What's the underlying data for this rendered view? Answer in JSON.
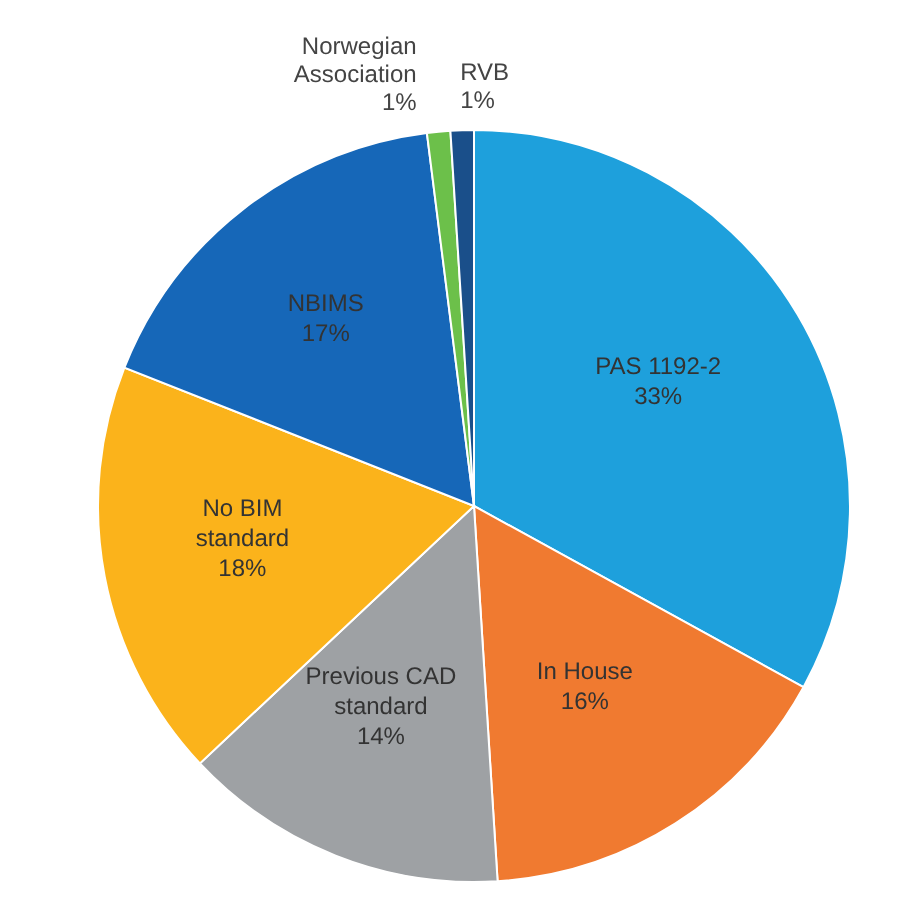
{
  "chart_data": {
    "type": "pie",
    "categories": [
      "PAS 1192-2",
      "In House",
      "Previous CAD standard",
      "No BIM standard",
      "NBIMS",
      "Norwegian Association",
      "RVB"
    ],
    "values": [
      33,
      16,
      14,
      18,
      17,
      1,
      1
    ],
    "colors": [
      "#1ea0dc",
      "#f07a30",
      "#9ea1a4",
      "#fbb31b",
      "#1667b8",
      "#6cc04a",
      "#1a4f8a"
    ],
    "value_labels": [
      "33%",
      "16%",
      "14%",
      "18%",
      "17%",
      "1%",
      "1%"
    ]
  }
}
